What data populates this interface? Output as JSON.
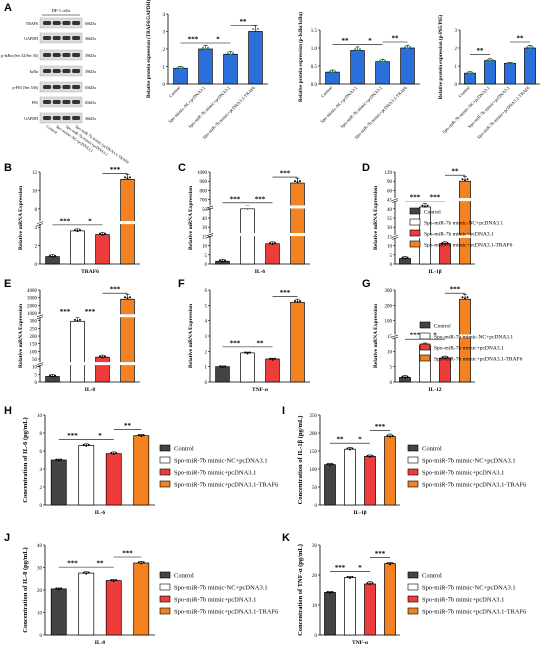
{
  "figure": {
    "panel_letters": [
      "A",
      "B",
      "C",
      "D",
      "E",
      "F",
      "G",
      "H",
      "I",
      "J",
      "K"
    ]
  },
  "legend": {
    "entries": [
      "Control",
      "Spo-miR-7b mimic-NC+pcDNA3.1",
      "Spo-miR-7b mimic+pcDNA3.1",
      "Spo-miR-7b mimic+pcDNA3.1-TRAF6"
    ]
  },
  "colors": {
    "control": "#444444",
    "mimic_nc": "#ffffff",
    "mimic": "#ee3b3b",
    "traf6": "#f58220",
    "bar_a1": "#2a6fdb"
  },
  "western_blot": {
    "cell_label": "DF-1 cells",
    "rows": [
      {
        "protein": "TRAF6",
        "size": "60kDa"
      },
      {
        "protein": "GAPDH",
        "size": "36kDa"
      },
      {
        "protein": "p-IκBα (Ser 32/Ser 36)",
        "size": "39kDa"
      },
      {
        "protein": "IκBα",
        "size": "39kDa"
      },
      {
        "protein": "p-P65 (Ser 536)",
        "size": "65kDa"
      },
      {
        "protein": "P65",
        "size": "65kDa"
      },
      {
        "protein": "GAPDH",
        "size": "36kDa"
      }
    ],
    "lane_labels": [
      "Control",
      "Spo-mimic-NC+pcDNA3.1",
      "Spo-miR-7b mimic+pcDNA3.1",
      "Spo-miR-7b mimic+pcDNA3.1-TRAF6"
    ]
  },
  "chart_data": [
    {
      "panel": "A",
      "type": "bar",
      "ylabel": "Relative protein expression (TRAF6/GAPDH)",
      "categories": [
        "Control",
        "Spo-mimic-NC+pcDNA3.1",
        "Spo-miR-7b mimic+pcDNA3.1",
        "Spo-miR-7b mimic+pcDNA3.1-TRAF6"
      ],
      "values": [
        0.9,
        2.0,
        1.7,
        3.0
      ],
      "errors": [
        0.1,
        0.2,
        0.15,
        0.35
      ],
      "ylim": [
        0,
        4
      ],
      "yticks": [
        "0",
        "1",
        "2",
        "3",
        "4"
      ],
      "sig": [
        [
          "***",
          0,
          1
        ],
        [
          "*",
          1,
          2
        ],
        [
          "**",
          2,
          3
        ]
      ]
    },
    {
      "panel": "A",
      "type": "bar",
      "ylabel": "Relative protein expression (p-IκBα/IκBα)",
      "categories": [
        "Control",
        "Spo-mimic-NC+pcDNA3.1",
        "Spo-miR-7b mimic+pcDNA3.1",
        "Spo-miR-7b mimic+pcDNA3.1-TRAF6"
      ],
      "values": [
        0.33,
        0.93,
        0.62,
        1.0
      ],
      "errors": [
        0.06,
        0.1,
        0.06,
        0.07
      ],
      "ylim": [
        0,
        1.5
      ],
      "yticks": [
        "0.0",
        "0.5",
        "1.0",
        "1.5"
      ],
      "sig": [
        [
          "**",
          0,
          1
        ],
        [
          "*",
          1,
          2
        ],
        [
          "**",
          2,
          3
        ]
      ]
    },
    {
      "panel": "A",
      "type": "bar",
      "ylabel": "Relative protein expression (p-P65/P65)",
      "categories": [
        "Control",
        "Spo-miR-7b mimic-NC+pcDNA3.1",
        "Spo-miR-7b mimic+pcDNA3.1",
        "Spo-miR-7b mimic+pcDNA3.1-TRAF6"
      ],
      "values": [
        0.6,
        1.3,
        1.15,
        2.0
      ],
      "errors": [
        0.08,
        0.1,
        0.05,
        0.15
      ],
      "ylim": [
        0,
        3
      ],
      "yticks": [
        "0",
        "1",
        "2",
        "3"
      ],
      "sig": [
        [
          "**",
          0,
          1
        ],
        [
          "**",
          2,
          3
        ]
      ]
    },
    {
      "panel": "B",
      "type": "bar",
      "ylabel": "Relative mRNA Expression",
      "xlabel": "TRAF6",
      "values": [
        1.0,
        2.0,
        1.7,
        11.0
      ],
      "errors": [
        0.05,
        0.1,
        0.1,
        1.2
      ],
      "yticks": [
        "0",
        "2",
        "4",
        "8",
        "10",
        "12"
      ],
      "ylim": [
        0,
        12
      ],
      "sig": [
        [
          "***",
          0,
          1
        ],
        [
          "*",
          1,
          2
        ],
        [
          "***",
          2,
          3
        ]
      ]
    },
    {
      "panel": "C",
      "type": "bar",
      "ylabel": "Relative mRNA Expression",
      "xlabel": "IL-6",
      "values": [
        1,
        38,
        5,
        750
      ],
      "errors": [
        0.2,
        5,
        0.8,
        80
      ],
      "yticks": [
        "0",
        "5",
        "10",
        "15",
        "30",
        "40",
        "50",
        "700",
        "800",
        "900",
        "1000"
      ],
      "ylim": [
        0,
        1000
      ],
      "sig": [
        [
          "***",
          0,
          1
        ],
        [
          "***",
          1,
          2
        ],
        [
          "***",
          2,
          3
        ]
      ]
    },
    {
      "panel": "D",
      "type": "bar",
      "ylabel": "Relative mRNA Expression",
      "xlabel": "IL-1β",
      "values": [
        1,
        36,
        10,
        95
      ],
      "errors": [
        0.1,
        3,
        0.5,
        10
      ],
      "yticks": [
        "0",
        "5",
        "10",
        "15",
        "30",
        "35",
        "40",
        "45",
        "60",
        "90",
        "120"
      ],
      "ylim": [
        0,
        120
      ],
      "sig": [
        [
          "***",
          0,
          1
        ],
        [
          "***",
          1,
          2
        ],
        [
          "**",
          2,
          3
        ]
      ]
    },
    {
      "panel": "E",
      "type": "bar",
      "ylabel": "Relative mRNA Expression",
      "xlabel": "IL-8",
      "values": [
        1,
        230,
        40,
        3000
      ],
      "errors": [
        0.3,
        25,
        3,
        100
      ],
      "yticks": [
        "0",
        "5",
        "10",
        "50",
        "100",
        "150",
        "200",
        "250",
        "300",
        "1000",
        "2000",
        "3000",
        "4000"
      ],
      "ylim": [
        0,
        4000
      ],
      "sig": [
        [
          "***",
          0,
          1
        ],
        [
          "***",
          1,
          2
        ],
        [
          "***",
          2,
          3
        ]
      ]
    },
    {
      "panel": "F",
      "type": "bar",
      "ylabel": "Relative mRNA Expression",
      "xlabel": "TNF-α",
      "values": [
        1.0,
        1.9,
        1.5,
        5.2
      ],
      "errors": [
        0.05,
        0.05,
        0.05,
        0.2
      ],
      "yticks": [
        "0",
        "1",
        "2",
        "3",
        "4",
        "5",
        "6"
      ],
      "ylim": [
        0,
        6
      ],
      "sig": [
        [
          "***",
          0,
          1
        ],
        [
          "**",
          1,
          2
        ],
        [
          "***",
          2,
          3
        ]
      ]
    },
    {
      "panel": "G",
      "type": "bar",
      "ylabel": "Relative mRNA Expression",
      "xlabel": "IL-12",
      "values": [
        1,
        11.5,
        7.5,
        200
      ],
      "errors": [
        0.1,
        1.2,
        0.3,
        30
      ],
      "yticks": [
        "0",
        "5",
        "10",
        "15",
        "100",
        "200",
        "300"
      ],
      "ylim": [
        0,
        300
      ],
      "sig": [
        [
          "***",
          0,
          1
        ],
        [
          "*",
          1,
          2
        ],
        [
          "***",
          2,
          3
        ]
      ]
    },
    {
      "panel": "H",
      "type": "bar",
      "ylabel": "Concentration of IL-6 (pg/mL)",
      "xlabel": "IL-6",
      "values": [
        5.0,
        6.6,
        5.7,
        7.7
      ],
      "errors": [
        0.1,
        0.2,
        0.2,
        0.15
      ],
      "ylim": [
        0,
        10
      ],
      "yticks": [
        "0",
        "2",
        "4",
        "6",
        "8",
        "10"
      ],
      "sig": [
        [
          "***",
          0,
          1
        ],
        [
          "*",
          1,
          2
        ],
        [
          "**",
          2,
          3
        ]
      ]
    },
    {
      "panel": "I",
      "type": "bar",
      "ylabel": "Concentration of IL-1β (pg/mL)",
      "xlabel": "IL-1β",
      "values": [
        112,
        155,
        135,
        190
      ],
      "errors": [
        4,
        5,
        4,
        7
      ],
      "ylim": [
        0,
        250
      ],
      "yticks": [
        "0",
        "50",
        "100",
        "150",
        "200",
        "250"
      ],
      "sig": [
        [
          "**",
          0,
          1
        ],
        [
          "*",
          1,
          2
        ],
        [
          "***",
          2,
          3
        ]
      ]
    },
    {
      "panel": "J",
      "type": "bar",
      "ylabel": "Concentration of IL-8 (pg/mL)",
      "xlabel": "IL-8",
      "values": [
        20.5,
        27.5,
        24.2,
        32.0
      ],
      "errors": [
        0.4,
        0.6,
        0.5,
        0.7
      ],
      "ylim": [
        0,
        40
      ],
      "yticks": [
        "0",
        "10",
        "20",
        "30",
        "40"
      ],
      "sig": [
        [
          "***",
          0,
          1
        ],
        [
          "**",
          1,
          2
        ],
        [
          "***",
          2,
          3
        ]
      ]
    },
    {
      "panel": "K",
      "type": "bar",
      "ylabel": "Concentration of TNF-α (pg/mL)",
      "xlabel": "TNF-α",
      "values": [
        14.2,
        19.2,
        17.0,
        23.8
      ],
      "errors": [
        0.3,
        0.3,
        0.8,
        0.3
      ],
      "ylim": [
        0,
        30
      ],
      "yticks": [
        "0",
        "10",
        "20",
        "30"
      ],
      "sig": [
        [
          "***",
          0,
          1
        ],
        [
          "*",
          1,
          2
        ],
        [
          "***",
          2,
          3
        ]
      ]
    }
  ]
}
